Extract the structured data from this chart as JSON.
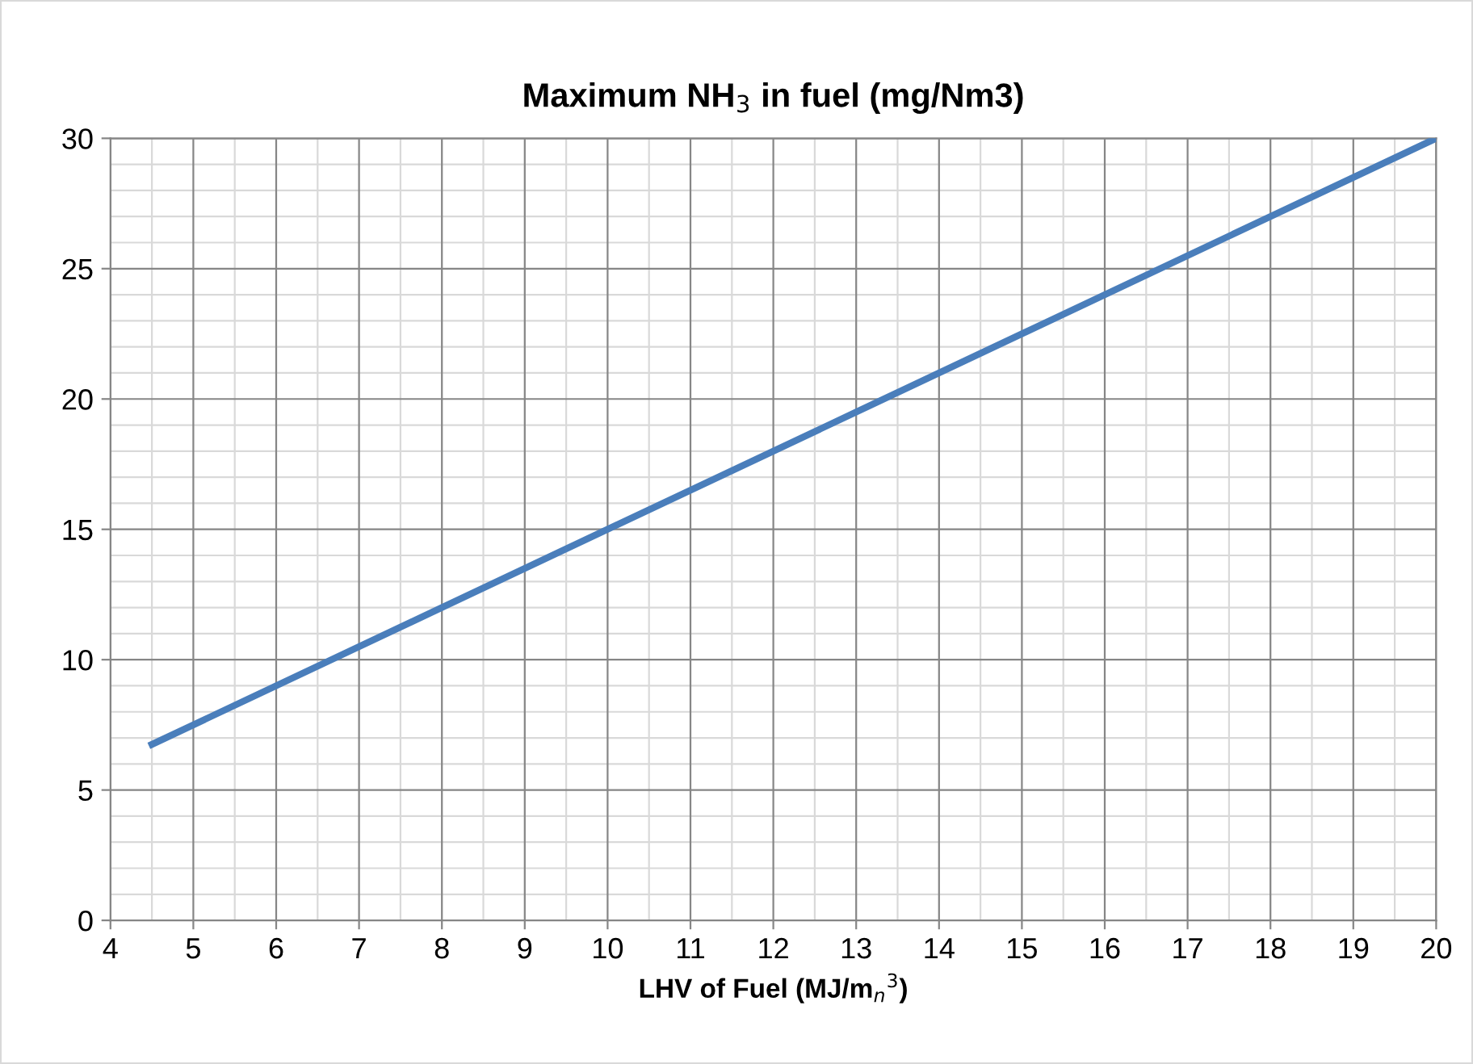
{
  "chart_data": {
    "type": "line",
    "title": "Maximum NH$_{3}$ in fuel (mg/Nm3)",
    "xlabel": "LHV of Fuel (MJ/m$_{n}$$^{3}$)",
    "x": [
      4.5,
      20
    ],
    "series": [
      {
        "color": "#4a7ebb",
        "values": [
          6.75,
          30
        ]
      }
    ],
    "xlim": [
      4,
      20
    ],
    "xticks": [
      4,
      5,
      6,
      7,
      8,
      9,
      10,
      11,
      12,
      13,
      14,
      15,
      16,
      17,
      18,
      19,
      20
    ],
    "ylim": [
      0,
      30
    ],
    "yticks": [
      0,
      5,
      10,
      15,
      20,
      25,
      30
    ],
    "grid": true,
    "legend": false,
    "marker": "none",
    "line_style": "solid"
  }
}
